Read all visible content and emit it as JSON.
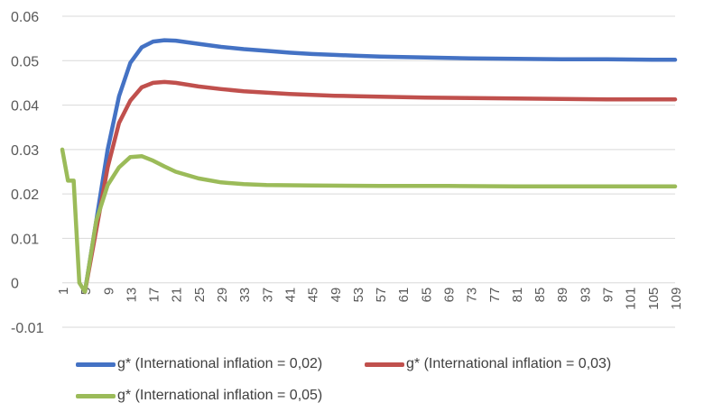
{
  "chart_data": {
    "type": "line",
    "title": "",
    "xlabel": "",
    "ylabel": "",
    "ylim": [
      -0.01,
      0.06
    ],
    "yticks": [
      "-0.01",
      "0",
      "0.01",
      "0.02",
      "0.03",
      "0.04",
      "0.05",
      "0.06"
    ],
    "xticks": [
      "1",
      "5",
      "9",
      "13",
      "17",
      "21",
      "25",
      "29",
      "33",
      "37",
      "41",
      "45",
      "49",
      "53",
      "57",
      "61",
      "65",
      "69",
      "73",
      "77",
      "81",
      "85",
      "89",
      "93",
      "97",
      "101",
      "105",
      "109"
    ],
    "xlim": [
      1,
      109
    ],
    "grid": "horizontal",
    "legend_position": "bottom",
    "series": [
      {
        "name": "g* (International inflation = 0,02)",
        "color": "#4472C4",
        "points": [
          [
            5,
            -0.002
          ],
          [
            7,
            0.014
          ],
          [
            9,
            0.03
          ],
          [
            11,
            0.042
          ],
          [
            13,
            0.0495
          ],
          [
            15,
            0.053
          ],
          [
            17,
            0.0543
          ],
          [
            19,
            0.0546
          ],
          [
            21,
            0.0545
          ],
          [
            25,
            0.0538
          ],
          [
            29,
            0.0531
          ],
          [
            33,
            0.0526
          ],
          [
            37,
            0.0522
          ],
          [
            41,
            0.0518
          ],
          [
            45,
            0.0515
          ],
          [
            49,
            0.0513
          ],
          [
            53,
            0.0511
          ],
          [
            57,
            0.0509
          ],
          [
            61,
            0.0508
          ],
          [
            65,
            0.0507
          ],
          [
            69,
            0.0506
          ],
          [
            73,
            0.0505
          ],
          [
            81,
            0.0504
          ],
          [
            89,
            0.0503
          ],
          [
            97,
            0.0503
          ],
          [
            105,
            0.0502
          ],
          [
            109,
            0.0502
          ]
        ]
      },
      {
        "name": "g* (International inflation = 0,03)",
        "color": "#C0504D",
        "points": [
          [
            5,
            -0.002
          ],
          [
            7,
            0.012
          ],
          [
            9,
            0.026
          ],
          [
            11,
            0.036
          ],
          [
            13,
            0.041
          ],
          [
            15,
            0.044
          ],
          [
            17,
            0.045
          ],
          [
            19,
            0.0452
          ],
          [
            21,
            0.045
          ],
          [
            25,
            0.0442
          ],
          [
            29,
            0.0436
          ],
          [
            33,
            0.0431
          ],
          [
            37,
            0.0428
          ],
          [
            41,
            0.0425
          ],
          [
            45,
            0.0423
          ],
          [
            49,
            0.0421
          ],
          [
            53,
            0.042
          ],
          [
            57,
            0.0419
          ],
          [
            61,
            0.0418
          ],
          [
            65,
            0.0417
          ],
          [
            73,
            0.0416
          ],
          [
            81,
            0.0415
          ],
          [
            89,
            0.0414
          ],
          [
            97,
            0.0413
          ],
          [
            105,
            0.0413
          ],
          [
            109,
            0.0413
          ]
        ]
      },
      {
        "name": "g* (International inflation = 0,05)",
        "color": "#9BBB59",
        "points": [
          [
            1,
            0.03
          ],
          [
            2,
            0.023
          ],
          [
            3,
            0.023
          ],
          [
            4,
            0.0
          ],
          [
            5,
            -0.002
          ],
          [
            7,
            0.014
          ],
          [
            9,
            0.022
          ],
          [
            11,
            0.026
          ],
          [
            13,
            0.0283
          ],
          [
            15,
            0.0285
          ],
          [
            17,
            0.0275
          ],
          [
            19,
            0.0262
          ],
          [
            21,
            0.025
          ],
          [
            25,
            0.0235
          ],
          [
            29,
            0.0226
          ],
          [
            33,
            0.0222
          ],
          [
            37,
            0.022
          ],
          [
            45,
            0.0219
          ],
          [
            57,
            0.0218
          ],
          [
            69,
            0.0218
          ],
          [
            81,
            0.0217
          ],
          [
            93,
            0.0217
          ],
          [
            109,
            0.0217
          ]
        ]
      }
    ]
  }
}
